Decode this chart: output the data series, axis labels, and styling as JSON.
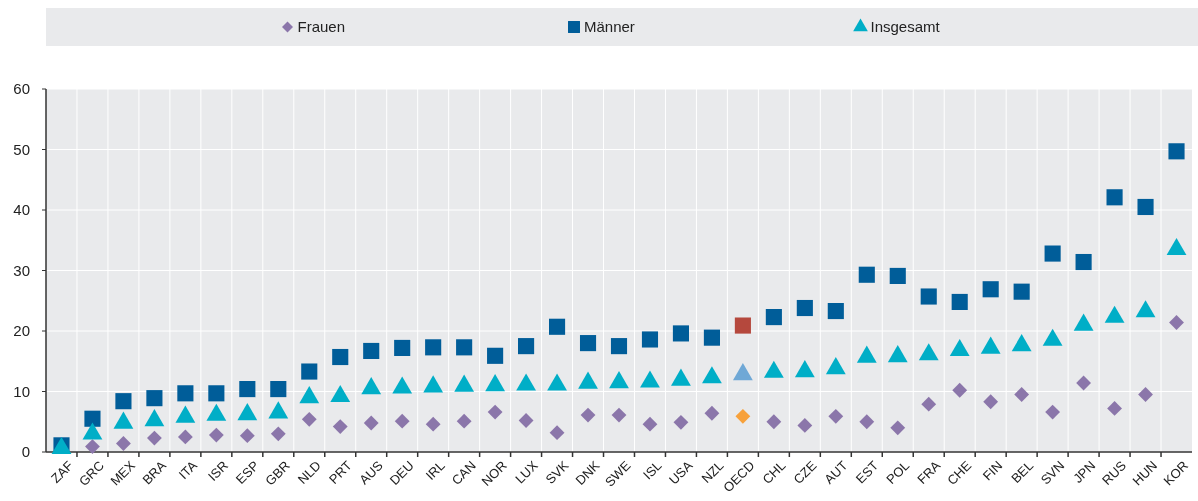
{
  "chart_data": {
    "type": "scatter",
    "categories": [
      "ZAF",
      "GRC",
      "MEX",
      "BRA",
      "ITA",
      "ISR",
      "ESP",
      "GBR",
      "NLD",
      "PRT",
      "AUS",
      "DEU",
      "IRL",
      "CAN",
      "NOR",
      "LUX",
      "SVK",
      "DNK",
      "SWE",
      "ISL",
      "USA",
      "NZL",
      "OECD",
      "CHL",
      "CZE",
      "AUT",
      "EST",
      "POL",
      "FRA",
      "CHE",
      "FIN",
      "BEL",
      "SVN",
      "JPN",
      "RUS",
      "HUN",
      "KOR"
    ],
    "series": [
      {
        "name": "Frauen",
        "color": "#8b76aa",
        "marker": "diamond",
        "colors": [
          null,
          "#8b76aa",
          "#8b76aa",
          "#8b76aa",
          "#8b76aa",
          "#8b76aa",
          "#8b76aa",
          "#8b76aa",
          "#8b76aa",
          "#8b76aa",
          "#8b76aa",
          "#8b76aa",
          "#8b76aa",
          "#8b76aa",
          "#8b76aa",
          "#8b76aa",
          "#8b76aa",
          "#8b76aa",
          "#8b76aa",
          "#8b76aa",
          "#8b76aa",
          "#8b76aa",
          "#f7a13b",
          "#8b76aa",
          "#8b76aa",
          "#8b76aa",
          "#8b76aa",
          "#8b76aa",
          "#8b76aa",
          "#8b76aa",
          "#8b76aa",
          "#8b76aa",
          "#8b76aa",
          "#8b76aa",
          "#8b76aa",
          "#8b76aa",
          "#8b76aa"
        ],
        "values": [
          null,
          0.9,
          1.4,
          2.3,
          2.5,
          2.8,
          2.7,
          3.0,
          5.4,
          4.2,
          4.8,
          5.1,
          4.6,
          5.1,
          6.6,
          5.2,
          3.2,
          6.1,
          6.1,
          4.6,
          4.9,
          6.4,
          5.9,
          5.0,
          4.4,
          5.9,
          5.0,
          4.0,
          7.9,
          10.2,
          8.3,
          9.5,
          6.6,
          11.4,
          7.2,
          9.5,
          21.4
        ]
      },
      {
        "name": "Männer",
        "color": "#005d99",
        "marker": "square",
        "colors": [
          "#005d99",
          "#005d99",
          "#005d99",
          "#005d99",
          "#005d99",
          "#005d99",
          "#005d99",
          "#005d99",
          "#005d99",
          "#005d99",
          "#005d99",
          "#005d99",
          "#005d99",
          "#005d99",
          "#005d99",
          "#005d99",
          "#005d99",
          "#005d99",
          "#005d99",
          "#005d99",
          "#005d99",
          "#005d99",
          "#b5483d",
          "#005d99",
          "#005d99",
          "#005d99",
          "#005d99",
          "#005d99",
          "#005d99",
          "#005d99",
          "#005d99",
          "#005d99",
          "#005d99",
          "#005d99",
          "#005d99",
          "#005d99",
          "#005d99"
        ],
        "values": [
          1.1,
          5.5,
          8.4,
          8.9,
          9.7,
          9.7,
          10.4,
          10.4,
          13.3,
          15.7,
          16.7,
          17.2,
          17.3,
          17.3,
          15.9,
          17.5,
          20.7,
          18.0,
          17.5,
          18.6,
          19.6,
          18.9,
          20.9,
          22.3,
          23.8,
          23.3,
          29.3,
          29.1,
          25.7,
          24.8,
          26.9,
          26.5,
          32.8,
          31.4,
          42.1,
          40.5,
          49.7
        ]
      },
      {
        "name": "Insgesamt",
        "color": "#00aec7",
        "marker": "triangle",
        "colors": [
          "#00aec7",
          "#00aec7",
          "#00aec7",
          "#00aec7",
          "#00aec7",
          "#00aec7",
          "#00aec7",
          "#00aec7",
          "#00aec7",
          "#00aec7",
          "#00aec7",
          "#00aec7",
          "#00aec7",
          "#00aec7",
          "#00aec7",
          "#00aec7",
          "#00aec7",
          "#00aec7",
          "#00aec7",
          "#00aec7",
          "#00aec7",
          "#00aec7",
          "#6fa8d6",
          "#00aec7",
          "#00aec7",
          "#00aec7",
          "#00aec7",
          "#00aec7",
          "#00aec7",
          "#00aec7",
          "#00aec7",
          "#00aec7",
          "#00aec7",
          "#00aec7",
          "#00aec7",
          "#00aec7",
          "#00aec7"
        ],
        "values": [
          0.6,
          3.0,
          4.8,
          5.2,
          5.8,
          6.1,
          6.2,
          6.5,
          9.0,
          9.2,
          10.5,
          10.6,
          10.8,
          10.9,
          11.0,
          11.1,
          11.1,
          11.4,
          11.5,
          11.6,
          11.9,
          12.3,
          12.8,
          13.2,
          13.3,
          13.8,
          15.7,
          15.8,
          16.1,
          16.8,
          17.2,
          17.6,
          18.5,
          21.0,
          22.3,
          23.2,
          33.5
        ]
      }
    ],
    "ylim": [
      0,
      60
    ],
    "yticks": [
      0,
      10,
      20,
      30,
      40,
      50,
      60
    ],
    "grid": true,
    "legend": "top"
  }
}
